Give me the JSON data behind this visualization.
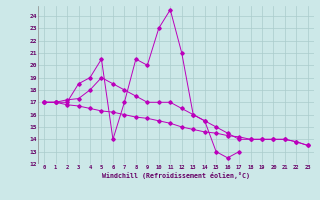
{
  "line1_x": [
    0,
    1,
    2,
    3,
    4,
    5,
    6,
    7,
    8,
    9,
    10,
    11,
    12,
    13,
    14,
    15,
    16,
    17
  ],
  "line1_y": [
    17,
    17,
    17,
    18.5,
    19,
    20.5,
    14,
    17,
    20.5,
    20,
    23,
    24.5,
    21,
    16,
    15.5,
    13,
    12.5,
    13
  ],
  "line2_x": [
    0,
    1,
    2,
    3,
    4,
    5,
    6,
    7,
    8,
    9,
    10,
    11,
    12,
    13,
    14,
    15,
    16,
    17,
    18,
    19,
    20,
    21,
    22,
    23
  ],
  "line2_y": [
    17,
    17,
    17.2,
    17.3,
    18,
    19,
    18.5,
    18,
    17.5,
    17,
    17,
    17,
    16.5,
    16,
    15.5,
    15,
    14.5,
    14,
    14,
    14,
    14,
    14,
    13.8,
    13.5
  ],
  "line3_x": [
    0,
    1,
    2,
    3,
    4,
    5,
    6,
    7,
    8,
    9,
    10,
    11,
    12,
    13,
    14,
    15,
    16,
    17,
    18,
    19,
    20,
    21,
    22,
    23
  ],
  "line3_y": [
    17,
    17,
    16.8,
    16.7,
    16.5,
    16.3,
    16.2,
    16,
    15.8,
    15.7,
    15.5,
    15.3,
    15,
    14.8,
    14.6,
    14.5,
    14.3,
    14.2,
    14,
    14,
    14,
    14,
    13.8,
    13.5
  ],
  "line_color": "#bb00bb",
  "bg_color": "#cce8e8",
  "grid_color": "#aacccc",
  "xlabel": "Windchill (Refroidissement éolien,°C)",
  "xlim": [
    -0.5,
    23.5
  ],
  "ylim": [
    12,
    24.8
  ],
  "yticks": [
    12,
    13,
    14,
    15,
    16,
    17,
    18,
    19,
    20,
    21,
    22,
    23,
    24
  ],
  "xticks": [
    0,
    1,
    2,
    3,
    4,
    5,
    6,
    7,
    8,
    9,
    10,
    11,
    12,
    13,
    14,
    15,
    16,
    17,
    18,
    19,
    20,
    21,
    22,
    23
  ]
}
